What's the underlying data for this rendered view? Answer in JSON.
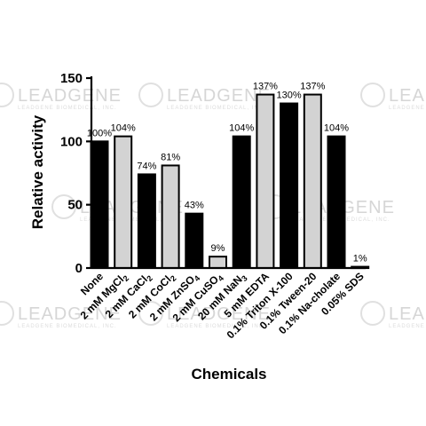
{
  "watermark": {
    "text": "LEADGENE",
    "sub": "LEADGENE BIOMEDICAL, INC."
  },
  "chart_data": {
    "type": "bar",
    "categories": [
      "None",
      "2 mM MgCl2",
      "2 mM CaCl2",
      "2 mM CoCl2",
      "2 mM ZnSO4",
      "2 mM CuSO4",
      "20 mM NaN3",
      "5 mM EDTA",
      "0.1% Triton X-100",
      "0.1% Tween-20",
      "0.1% Na-cholate",
      "0.05% SDS"
    ],
    "category_subscripts": [
      "",
      "2",
      "2",
      "2",
      "4",
      "4",
      "3",
      "",
      "",
      "",
      "",
      ""
    ],
    "values": [
      100,
      104,
      74,
      81,
      43,
      9,
      104,
      137,
      130,
      137,
      104,
      1
    ],
    "data_labels": [
      "100%",
      "104%",
      "74%",
      "81%",
      "43%",
      "9%",
      "104%",
      "137%",
      "130%",
      "137%",
      "104%",
      "1%"
    ],
    "bar_fill": [
      "black",
      "gray",
      "black",
      "gray",
      "black",
      "gray",
      "black",
      "gray",
      "black",
      "gray",
      "black",
      "black"
    ],
    "colors": {
      "black": "#000000",
      "gray": "#d3d3d3",
      "edge": "#000000"
    },
    "xlabel": "Chemicals",
    "ylabel": "Relative activity",
    "ylim": [
      0,
      150
    ],
    "yticks": [
      0,
      50,
      100,
      150
    ],
    "grid": false
  }
}
